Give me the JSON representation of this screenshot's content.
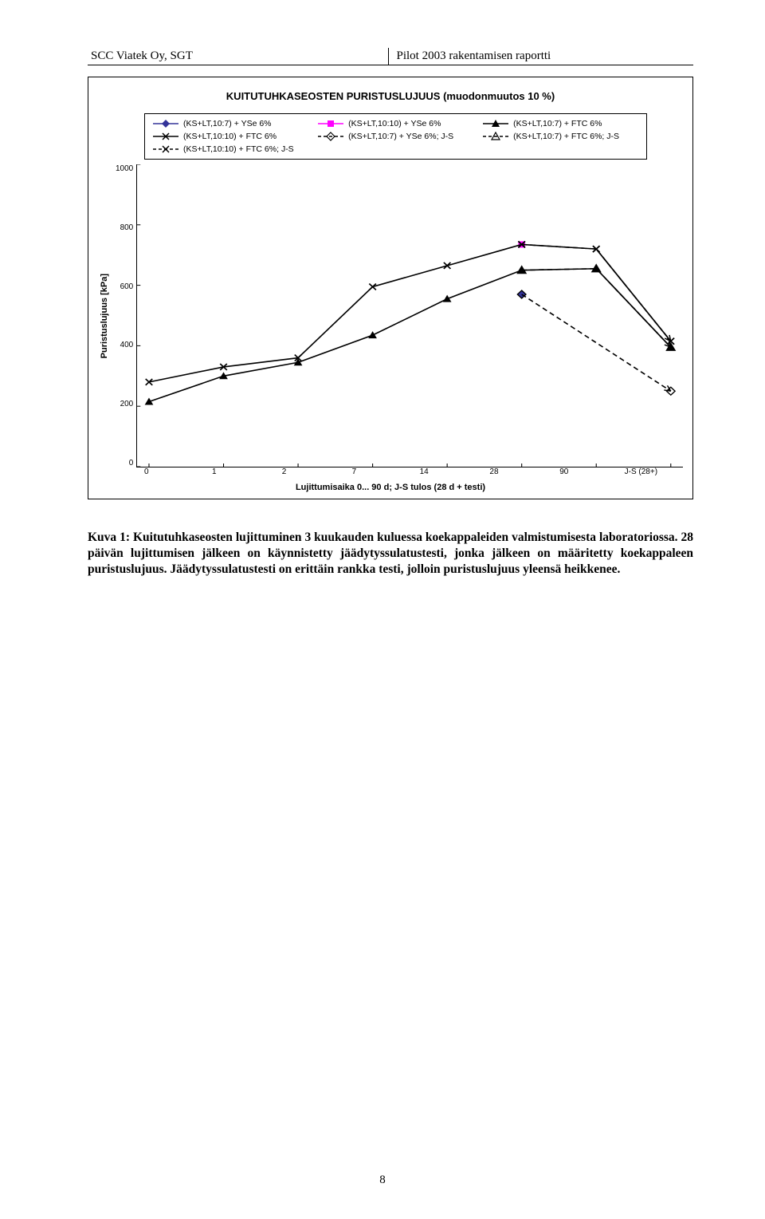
{
  "header": {
    "left": "SCC Viatek Oy, SGT",
    "right": "Pilot 2003 rakentamisen raportti"
  },
  "chart": {
    "type": "line",
    "title": "KUITUTUHKASEOSTEN PURISTUSLUJUUS (muodonmuutos 10 %)",
    "ylabel": "Puristuslujuus [kPa]",
    "xlabel": "Lujittumisaika 0... 90 d; J-S tulos (28 d + testi)",
    "categories": [
      "0",
      "1",
      "2",
      "7",
      "14",
      "28",
      "90",
      "J-S (28+)"
    ],
    "ylim": [
      0,
      1000
    ],
    "ytick_step": 200,
    "yticks": [
      "1000",
      "800",
      "600",
      "400",
      "200",
      "0"
    ],
    "background_color": "#ffffff",
    "series": [
      {
        "name": "(KS+LT,10:7) + YSe 6%",
        "color": "#333399",
        "marker": "diamond",
        "dash": "solid",
        "values": [
          null,
          null,
          null,
          null,
          null,
          570,
          null,
          null
        ]
      },
      {
        "name": "(KS+LT,10:10) + YSe 6%",
        "color": "#ff00ff",
        "marker": "square",
        "dash": "solid",
        "values": [
          null,
          null,
          null,
          null,
          null,
          735,
          null,
          null
        ]
      },
      {
        "name": "(KS+LT,10:7) + FTC 6%",
        "color": "#000000",
        "marker": "triangle",
        "dash": "solid",
        "values": [
          215,
          300,
          345,
          435,
          555,
          650,
          655,
          395
        ]
      },
      {
        "name": "(KS+LT,10:10) + FTC 6%",
        "color": "#000000",
        "marker": "x",
        "dash": "solid",
        "values": [
          280,
          330,
          360,
          595,
          665,
          735,
          720,
          415
        ]
      },
      {
        "name": "(KS+LT,10:7) + YSe 6%; J-S",
        "color": "#000000",
        "marker": "dopen",
        "dash": "dash",
        "values": [
          null,
          null,
          null,
          null,
          null,
          570,
          null,
          250
        ]
      },
      {
        "name": "(KS+LT,10:7) + FTC 6%; J-S",
        "color": "#000000",
        "marker": "topen",
        "dash": "dash",
        "values": [
          null,
          null,
          null,
          null,
          null,
          650,
          655,
          395
        ]
      },
      {
        "name": "(KS+LT,10:10) + FTC 6%; J-S",
        "color": "#000000",
        "marker": "xopen",
        "dash": "dash",
        "values": [
          null,
          null,
          null,
          null,
          null,
          735,
          720,
          415
        ]
      }
    ],
    "legend_fontsize": 10.5,
    "axis_fontsize": 10,
    "title_fontsize": 13
  },
  "caption": {
    "bold": "Kuva 1: Kuitutuhkaseosten lujittuminen 3 kuukauden kuluessa koekappaleiden valmistumisesta laboratoriossa. 28 päivän lujittumisen jälkeen on käynnistetty jäädytyssulatustesti, jonka jälkeen on määritetty koekappaleen puristuslujuus. Jäädytyssulatustesti on erittäin rankka testi, jolloin puristuslujuus yleensä heikkenee."
  },
  "page_number": "8"
}
